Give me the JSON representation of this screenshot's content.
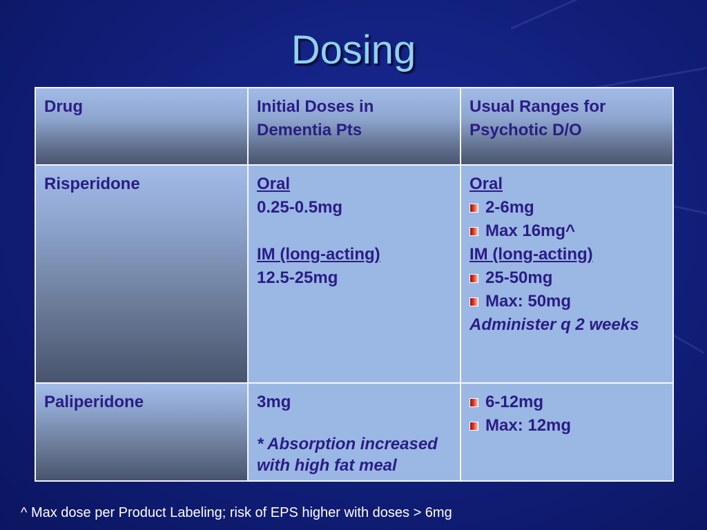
{
  "slide": {
    "title": "Dosing",
    "footnote": "^ Max dose per Product Labeling; risk of EPS higher with doses > 6mg"
  },
  "table": {
    "headers": [
      "Drug",
      "Initial Doses in Dementia Pts",
      "Usual Ranges for Psychotic D/O"
    ],
    "rows": [
      {
        "drug": "Risperidone",
        "initial": {
          "oral_label": "Oral",
          "oral_dose": "0.25-0.5mg",
          "im_label": "IM (long-acting)",
          "im_dose": "12.5-25mg"
        },
        "usual": {
          "oral_label": "Oral",
          "oral_bullets": [
            "2-6mg",
            "Max 16mg^"
          ],
          "im_label": "IM (long-acting)",
          "im_bullets": [
            "25-50mg",
            "Max: 50mg"
          ],
          "note": "Administer q 2 weeks"
        }
      },
      {
        "drug": "Paliperidone",
        "initial": {
          "dose": "3mg",
          "note": "* Absorption increased with high fat meal"
        },
        "usual": {
          "bullets": [
            "6-12mg",
            "Max: 12mg"
          ]
        }
      }
    ]
  },
  "icons": {
    "bullet": "red-square-bullet-icon"
  },
  "colors": {
    "background": "#13217f",
    "title": "#8fd2ef",
    "cell": "#9bb7e4",
    "text": "#2a1d86",
    "bullet": "#d22a20"
  }
}
